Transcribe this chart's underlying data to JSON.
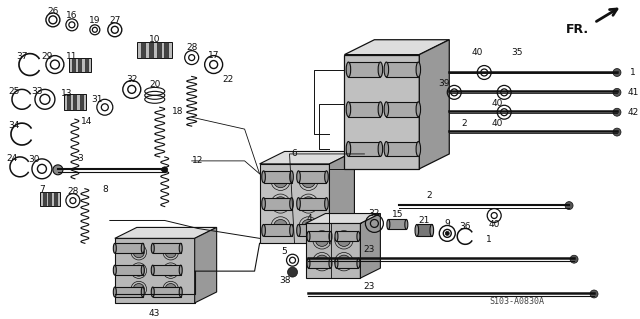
{
  "bg_color": "#ffffff",
  "fig_width": 6.4,
  "fig_height": 3.19,
  "dpi": 100,
  "diagram_code": "S103-A0830A",
  "fr_label": "FR.",
  "text_color": "#000000",
  "dark_gray": "#222222",
  "mid_gray": "#888888",
  "light_gray": "#cccccc",
  "fontsize": 6.5
}
